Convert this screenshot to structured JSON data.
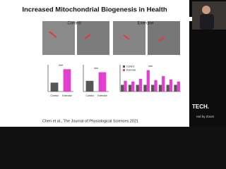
{
  "slide": {
    "title": "Increased Mitochondrial Biogenesis in Health",
    "control_label": "Control",
    "exercise_label": "Exercise",
    "citation": "Chen et al.,  The Journal of Physiological Sciences 2021"
  },
  "video": {
    "logo": "TECH.",
    "caption": "red by Zoom"
  },
  "chart_data": [
    {
      "type": "bar",
      "categories": [
        "Control",
        "Exercise"
      ],
      "values": [
        1.0,
        2.5
      ],
      "colors": [
        "#555555",
        "#e23fcf"
      ],
      "ylim": [
        0,
        3
      ],
      "annotation": "***"
    },
    {
      "type": "bar",
      "categories": [
        "Control",
        "Exercise"
      ],
      "values": [
        1.0,
        1.8
      ],
      "colors": [
        "#555555",
        "#e23fcf"
      ],
      "ylim": [
        0,
        2.5
      ],
      "annotation": "***"
    },
    {
      "type": "grouped-bar",
      "categories": [
        null,
        null,
        null,
        null,
        null,
        null,
        null,
        null
      ],
      "series": [
        {
          "name": "Control",
          "color": "#555555",
          "values": [
            1,
            1,
            1,
            1,
            1,
            1,
            1,
            1
          ]
        },
        {
          "name": "Exercise",
          "color": "#e23fcf",
          "values": [
            1.6,
            1.5,
            1.9,
            3.2,
            1.7,
            2.3,
            1.8,
            1.5
          ]
        }
      ],
      "ylim": [
        0,
        4
      ],
      "annotation": "***"
    }
  ]
}
